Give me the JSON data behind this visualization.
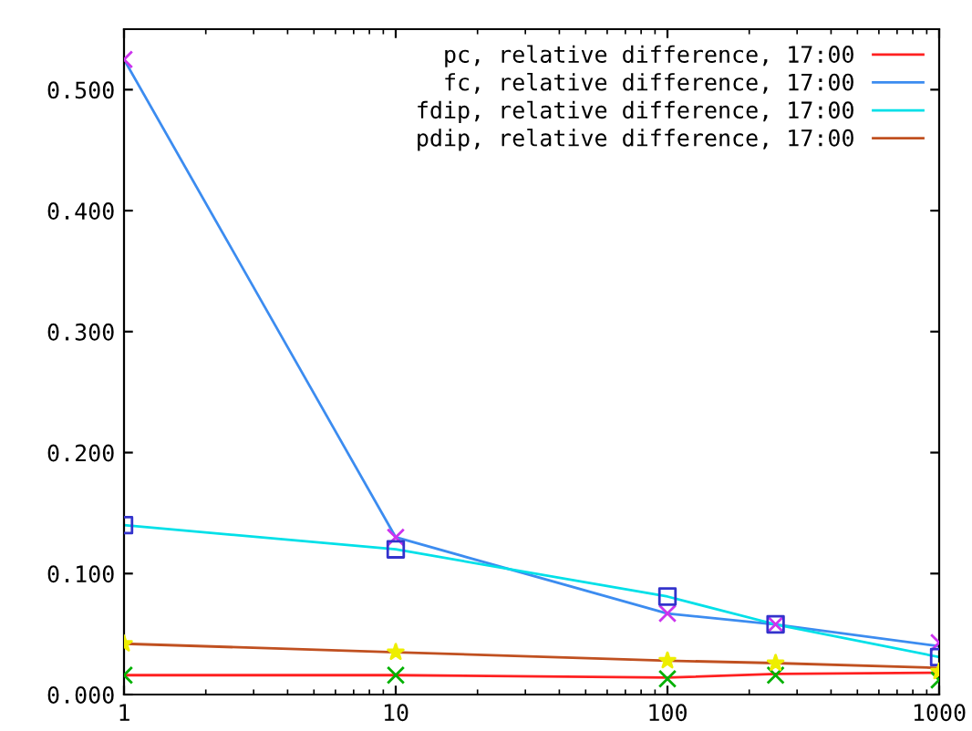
{
  "chart_data": {
    "type": "line",
    "log": "x",
    "x": [
      1,
      10,
      100,
      250,
      1000
    ],
    "xlim": [
      1,
      1000
    ],
    "xticks": [
      1,
      10,
      100,
      1000
    ],
    "ylim": [
      0,
      0.55
    ],
    "yticks": [
      {
        "value": 0,
        "label": "0.000"
      },
      {
        "value": 0.1,
        "label": "0.100"
      },
      {
        "value": 0.2,
        "label": "0.200"
      },
      {
        "value": 0.3,
        "label": "0.300"
      },
      {
        "value": 0.4,
        "label": "0.400"
      },
      {
        "value": 0.5,
        "label": "0.500"
      }
    ],
    "grid": false,
    "legend": "top right",
    "series": [
      {
        "name": "pc, relative difference, 17:00",
        "color": "#ff2020",
        "values": [
          0.016,
          0.016,
          0.014,
          0.017,
          0.018
        ]
      },
      {
        "name": "fc, relative difference, 17:00",
        "color": "#3c8cf0",
        "values": [
          0.525,
          0.13,
          0.067,
          0.058,
          0.04
        ]
      },
      {
        "name": "fdip, relative difference, 17:00",
        "color": "#00e0e8",
        "values": [
          0.14,
          0.12,
          0.081,
          0.058,
          0.031
        ]
      },
      {
        "name": "pdip, relative difference, 17:00",
        "color": "#c05020",
        "values": [
          0.042,
          0.035,
          0.028,
          0.026,
          0.022
        ]
      },
      {
        "type": "scatter",
        "marker": "cross",
        "color": "#00b000",
        "values": [
          0.016,
          0.016,
          0.013,
          0.016,
          0.012
        ]
      },
      {
        "type": "scatter",
        "marker": "cross",
        "color": "#cc33ee",
        "values": [
          0.525,
          0.13,
          0.067,
          0.058,
          0.043
        ]
      },
      {
        "type": "scatter",
        "marker": "square",
        "color": "#3333cc",
        "values": [
          0.14,
          0.12,
          0.081,
          0.058,
          0.031
        ]
      },
      {
        "type": "scatter",
        "marker": "star",
        "color": "#eeee00",
        "values": [
          0.042,
          0.035,
          0.028,
          0.026,
          0.019
        ]
      }
    ]
  }
}
